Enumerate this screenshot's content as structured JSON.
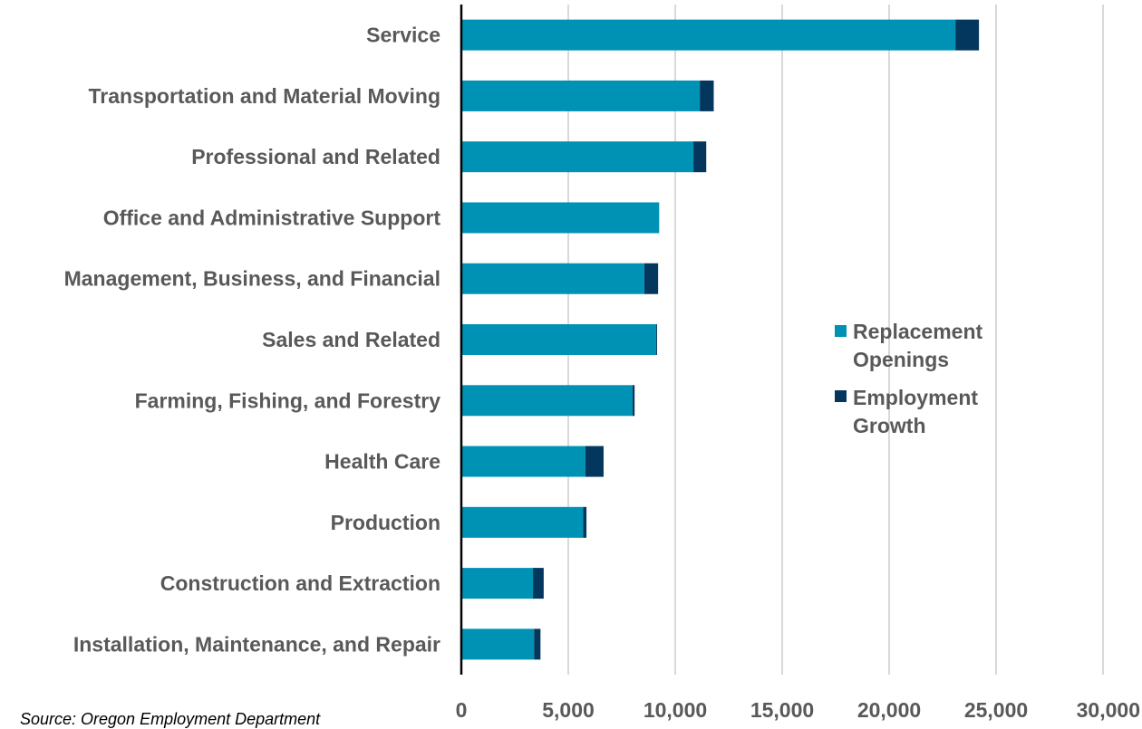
{
  "chart_data": {
    "type": "bar",
    "orientation": "horizontal",
    "stacked": true,
    "categories": [
      "Service",
      "Transportation and Material Moving",
      "Professional and Related",
      "Office and Administrative Support",
      "Management, Business, and Financial",
      "Sales and Related",
      "Farming, Fishing, and Forestry",
      "Health Care",
      "Production",
      "Construction and Extraction",
      "Installation, Maintenance, and Repair"
    ],
    "series": [
      {
        "name": "Replacement Openings",
        "color": "#0092b4",
        "values": [
          23100,
          11150,
          10850,
          9250,
          8550,
          9100,
          8000,
          5800,
          5700,
          3350,
          3400
        ]
      },
      {
        "name": "Employment Growth",
        "color": "#04375e",
        "values": [
          1100,
          650,
          600,
          0,
          650,
          50,
          100,
          850,
          150,
          500,
          300
        ]
      }
    ],
    "xlim": [
      0,
      30000
    ],
    "xticks": [
      "0",
      "5,000",
      "10,000",
      "15,000",
      "20,000",
      "25,000",
      "30,000"
    ],
    "xtick_values": [
      0,
      5000,
      10000,
      15000,
      20000,
      25000,
      30000
    ],
    "grid": true,
    "legend_position": "right",
    "title": "",
    "xlabel": "",
    "ylabel": ""
  },
  "legend": {
    "replacement_line1": "Replacement",
    "replacement_line2": "Openings",
    "growth_line1": "Employment",
    "growth_line2": "Growth"
  },
  "source": "Source: Oregon Employment Department"
}
